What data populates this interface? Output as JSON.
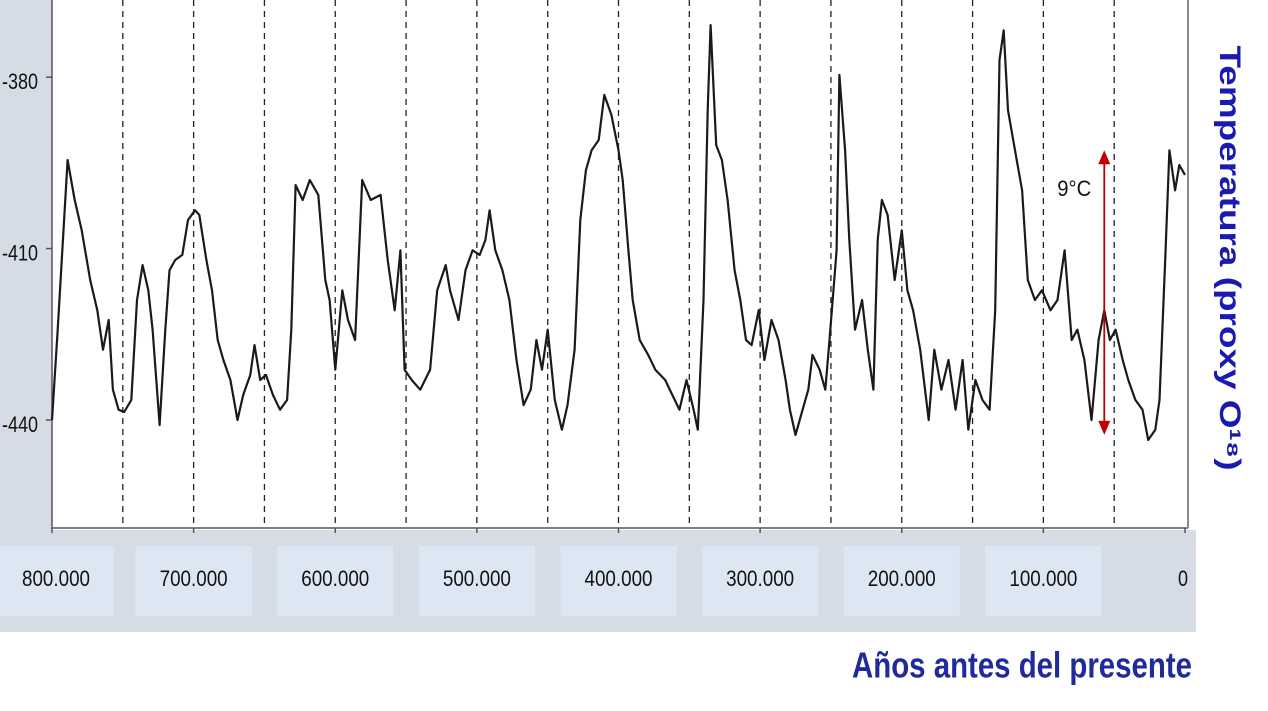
{
  "chart_data": {
    "type": "line",
    "x_label": "Años antes del presente",
    "y_label": "Temperatura (proxy O¹⁸)",
    "xlim": [
      800000,
      0
    ],
    "ylim": [
      -458.9,
      -366.5
    ],
    "xticks": [
      {
        "value": 800000,
        "label": "800.000"
      },
      {
        "value": 700000,
        "label": "700.000"
      },
      {
        "value": 600000,
        "label": "600.000"
      },
      {
        "value": 500000,
        "label": "500.000"
      },
      {
        "value": 400000,
        "label": "400.000"
      },
      {
        "value": 300000,
        "label": "300.000"
      },
      {
        "value": 200000,
        "label": "200.000"
      },
      {
        "value": 100000,
        "label": "100.000"
      },
      0
    ],
    "xgrid_lines": [
      750000,
      700000,
      650000,
      600000,
      550000,
      500000,
      450000,
      400000,
      350000,
      300000,
      250000,
      200000,
      150000,
      100000,
      50000
    ],
    "yticks": [
      -380,
      -410,
      -440
    ],
    "color": "#1a1a1a",
    "annotation": {
      "text": "9°C",
      "x": 57000,
      "y_range": [
        -442.6,
        -392.8
      ],
      "color": "#c00000"
    },
    "x": [
      800000,
      796000,
      789000,
      784000,
      779000,
      773000,
      768000,
      764000,
      760000,
      757000,
      753000,
      749000,
      744000,
      740000,
      736000,
      732000,
      729000,
      724000,
      720000,
      717000,
      713000,
      708000,
      704000,
      699000,
      696000,
      691000,
      687000,
      683000,
      679000,
      674000,
      669000,
      665000,
      660000,
      657000,
      653000,
      649000,
      644000,
      639000,
      634000,
      631000,
      628000,
      623000,
      618000,
      612000,
      607000,
      604000,
      600000,
      595000,
      591000,
      586000,
      581000,
      575000,
      568000,
      563000,
      558000,
      554000,
      551000,
      546000,
      540000,
      533000,
      528000,
      522000,
      519000,
      513000,
      508000,
      503000,
      498000,
      494000,
      491000,
      487000,
      482000,
      477000,
      472000,
      467000,
      462000,
      458000,
      454000,
      450000,
      445000,
      440000,
      436000,
      431000,
      427000,
      423000,
      419000,
      414000,
      410000,
      405000,
      400000,
      397000,
      393000,
      390000,
      385000,
      379000,
      374000,
      367000,
      362000,
      357000,
      352000,
      347000,
      344000,
      340000,
      337000,
      335000,
      331000,
      327000,
      323000,
      318000,
      314000,
      310000,
      306000,
      301000,
      297000,
      292000,
      287000,
      282000,
      279000,
      275000,
      270000,
      266000,
      263000,
      258000,
      254000,
      251000,
      246000,
      244000,
      240000,
      237000,
      233000,
      228000,
      224000,
      220000,
      217000,
      214000,
      210000,
      205000,
      200000,
      196000,
      192000,
      187000,
      181000,
      177000,
      172000,
      167000,
      162000,
      157000,
      153000,
      148000,
      143000,
      138000,
      134000,
      131000,
      128000,
      125000,
      120000,
      115000,
      111000,
      106000,
      101000,
      95000,
      90000,
      85000,
      80000,
      76000,
      71000,
      66000,
      61000,
      57000,
      53000,
      49000,
      44000,
      40000,
      35000,
      30000,
      26000,
      21000,
      18000,
      14000,
      11000,
      7000,
      4000,
      0
    ],
    "values": [
      -440.0,
      -424.2,
      -394.5,
      -401.5,
      -406.8,
      -415.5,
      -420.8,
      -427.7,
      -422.5,
      -434.7,
      -438.2,
      -438.6,
      -436.5,
      -419.0,
      -412.9,
      -417.3,
      -424.2,
      -440.9,
      -424.2,
      -413.8,
      -412.0,
      -411.1,
      -405.0,
      -403.3,
      -404.1,
      -412.0,
      -417.3,
      -426.0,
      -429.5,
      -433.0,
      -440.0,
      -435.6,
      -432.1,
      -426.9,
      -433.0,
      -432.1,
      -435.6,
      -438.2,
      -436.5,
      -424.2,
      -398.9,
      -401.5,
      -398.0,
      -400.6,
      -415.5,
      -419.0,
      -431.2,
      -417.3,
      -422.5,
      -426.0,
      -398.0,
      -401.5,
      -400.6,
      -412.0,
      -420.8,
      -410.3,
      -431.2,
      -433.0,
      -434.7,
      -431.2,
      -417.3,
      -412.9,
      -417.3,
      -422.5,
      -413.8,
      -410.3,
      -411.1,
      -408.5,
      -403.3,
      -410.3,
      -413.8,
      -419.0,
      -429.5,
      -437.4,
      -434.7,
      -426.0,
      -431.2,
      -424.2,
      -436.5,
      -441.7,
      -437.4,
      -427.7,
      -405.0,
      -396.3,
      -392.8,
      -391.0,
      -383.1,
      -386.6,
      -392.8,
      -398.0,
      -410.3,
      -419.0,
      -426.0,
      -428.6,
      -431.2,
      -433.0,
      -435.6,
      -438.2,
      -433.0,
      -438.2,
      -441.7,
      -419.0,
      -385.8,
      -370.9,
      -391.9,
      -394.5,
      -401.5,
      -413.8,
      -419.0,
      -426.0,
      -426.9,
      -420.8,
      -429.5,
      -422.5,
      -426.0,
      -433.0,
      -438.2,
      -442.6,
      -438.2,
      -434.7,
      -428.6,
      -431.2,
      -434.7,
      -426.0,
      -410.3,
      -379.6,
      -392.8,
      -408.5,
      -424.2,
      -419.0,
      -427.7,
      -434.7,
      -408.5,
      -401.5,
      -404.1,
      -415.5,
      -406.8,
      -417.3,
      -420.8,
      -427.7,
      -440.0,
      -427.7,
      -434.7,
      -429.5,
      -438.2,
      -429.5,
      -441.7,
      -433.0,
      -436.5,
      -438.2,
      -420.8,
      -377.0,
      -371.8,
      -385.8,
      -392.8,
      -399.8,
      -415.5,
      -419.0,
      -417.3,
      -420.8,
      -419.0,
      -410.3,
      -426.0,
      -424.2,
      -429.5,
      -440.0,
      -426.0,
      -420.8,
      -426.0,
      -424.2,
      -429.5,
      -433.0,
      -436.5,
      -438.2,
      -443.5,
      -441.7,
      -436.5,
      -412.0,
      -392.8,
      -399.8,
      -395.4,
      -397.1
    ]
  }
}
